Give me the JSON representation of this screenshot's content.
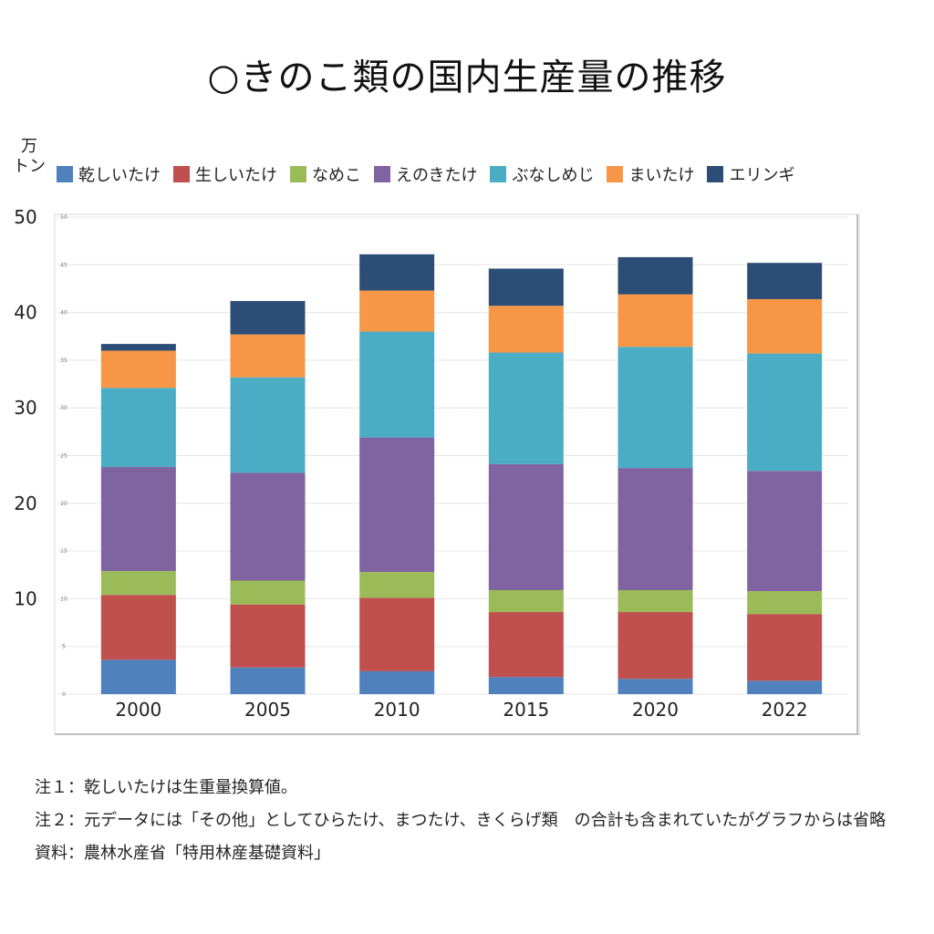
{
  "title": "○きのこ類の国内生産量の推移",
  "unit_label": [
    "万",
    "トン"
  ],
  "legend_colors": [
    "#4f81bd",
    "#c0504d",
    "#9bbb59",
    "#8064a2",
    "#4bacc6",
    "#f79646",
    "#2c4d75"
  ],
  "chart_data": {
    "type": "bar",
    "stacked": true,
    "categories": [
      "2000",
      "2005",
      "2010",
      "2015",
      "2020",
      "2022"
    ],
    "series": [
      {
        "name": "乾しいたけ",
        "values": [
          3.6,
          2.8,
          2.4,
          1.8,
          1.6,
          1.4
        ]
      },
      {
        "name": "生しいたけ",
        "values": [
          6.8,
          6.6,
          7.7,
          6.8,
          7.0,
          7.0
        ]
      },
      {
        "name": "なめこ",
        "values": [
          2.5,
          2.5,
          2.7,
          2.3,
          2.3,
          2.4
        ]
      },
      {
        "name": "えのきたけ",
        "values": [
          10.9,
          11.3,
          14.1,
          13.2,
          12.8,
          12.6
        ]
      },
      {
        "name": "ぶなしめじ",
        "values": [
          8.3,
          10.0,
          11.1,
          11.7,
          12.7,
          12.3
        ]
      },
      {
        "name": "まいたけ",
        "values": [
          3.9,
          4.5,
          4.3,
          4.9,
          5.5,
          5.7
        ]
      },
      {
        "name": "エリンギ",
        "values": [
          0.7,
          3.5,
          3.8,
          3.9,
          3.9,
          3.8
        ]
      }
    ],
    "y_ticks": [
      10,
      20,
      30,
      40,
      50
    ],
    "y_minor_ticks": [
      0,
      5,
      10,
      15,
      20,
      25,
      30,
      35,
      40,
      45,
      50
    ],
    "ylim": [
      0,
      50
    ],
    "grid": true,
    "legend_position": "top"
  },
  "notes": [
    "注１：乾しいたけは生重量換算値。",
    "注２：元データには「その他」としてひらたけ、まつたけ、きくらげ類　の合計も含まれていたがグラフからは省略",
    "資料：農林水産省「特用林産基礎資料」"
  ]
}
